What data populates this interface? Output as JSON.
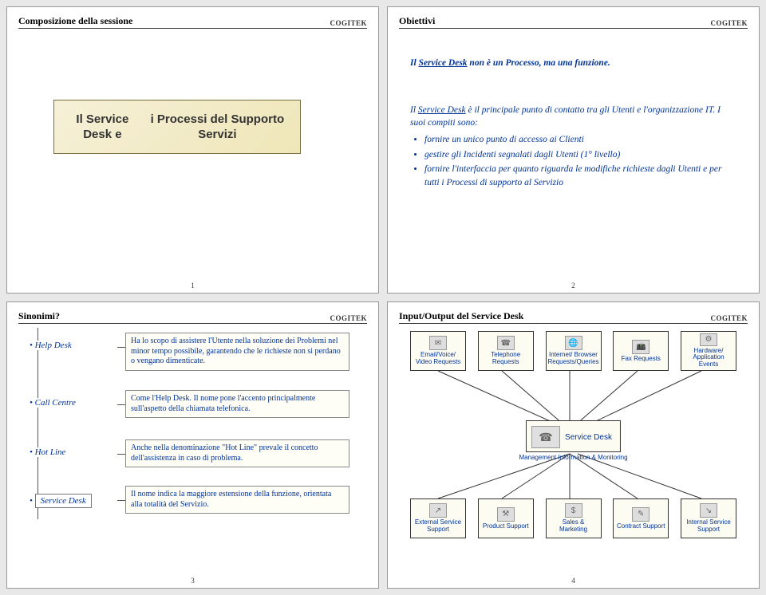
{
  "brand": "COGITEK",
  "slides": {
    "s1": {
      "title": "Composizione della sessione",
      "box_text": "Il Service Desk e\ni Processi del Supporto Servizi",
      "num": "1"
    },
    "s2": {
      "title": "Obiettivi",
      "line1_pre": "Il ",
      "line1_u": "Service Desk",
      "line1_post": " non è un Processo, ma una funzione.",
      "para1_pre": "Il ",
      "para1_u": "Service Desk",
      "para1_post": " è il principale punto di contatto tra gli Utenti e l'organizzazione IT.",
      "compiti": "I suoi compiti sono:",
      "b1": "fornire un unico punto di accesso ai Clienti",
      "b2": "gestire gli Incidenti segnalati dagli Utenti (1° livello)",
      "b3": "fornire l'interfaccia per quanto riguarda le modifiche richieste dagli Utenti e per tutti i Processi di supporto al Servizio",
      "num": "2"
    },
    "s3": {
      "title": "Sinonimi?",
      "items": [
        {
          "label": "Help Desk",
          "text": "Ha lo scopo di assistere l'Utente nella soluzione dei Problemi nel minor tempo possibile, garantendo che le richieste non si perdano o vengano dimenticate."
        },
        {
          "label": "Call Centre",
          "text": "Come l'Help Desk. Il nome pone l'accento principalmente sull'aspetto della chiamata telefonica."
        },
        {
          "label": "Hot Line",
          "text": "Anche nella denominazione \"Hot Line\" prevale il concetto dell'assistenza in caso di problema."
        },
        {
          "label": "Service Desk",
          "text": "Il nome indica la maggiore estensione della funzione, orientata alla totalità del Servizio."
        }
      ],
      "num": "3"
    },
    "s4": {
      "title": "Input/Output del Service Desk",
      "top": [
        "Email/Voice/ Video Requests",
        "Telephone Requests",
        "Internet/ Browser Requests/Queries",
        "Fax Requests",
        "Hardware/ Application Events"
      ],
      "center": "Service Desk",
      "mgmt": "Management Information & Monitoring",
      "bottom": [
        "External Service Support",
        "Product Support",
        "Sales & Marketing",
        "Contract Support",
        "Internal Service Support"
      ],
      "num": "4",
      "colors": {
        "node_bg": "#fdfcf3",
        "text": "#003399",
        "border": "#333333"
      }
    }
  }
}
